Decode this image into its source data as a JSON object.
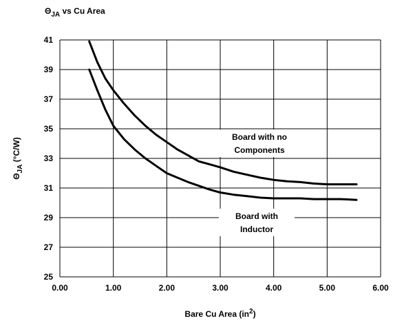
{
  "chart_data": {
    "type": "line",
    "title_symbol": "Θ",
    "title_sub": "JA",
    "title_rest": " vs Cu Area",
    "xlabel_main": "Bare Cu Area (in",
    "xlabel_sup": "2",
    "xlabel_close": ")",
    "ylabel_symbol": "Θ",
    "ylabel_sub": "JA",
    "ylabel_rest": " (°C/W)",
    "xlim": [
      0,
      6
    ],
    "ylim": [
      25,
      41
    ],
    "x_ticks": [
      0,
      1,
      2,
      3,
      4,
      5,
      6
    ],
    "x_tick_labels": [
      "0.00",
      "1.00",
      "2.00",
      "3.00",
      "4.00",
      "5.00",
      "6.00"
    ],
    "y_ticks": [
      25,
      27,
      29,
      31,
      33,
      35,
      37,
      39,
      41
    ],
    "y_tick_labels": [
      "25",
      "27",
      "29",
      "31",
      "33",
      "35",
      "37",
      "39",
      "41"
    ],
    "grid": true,
    "series": [
      {
        "name_line1": "Board with no",
        "name_line2": "Components",
        "x": [
          0.55,
          0.7,
          0.85,
          1.0,
          1.2,
          1.4,
          1.6,
          1.8,
          2.0,
          2.2,
          2.4,
          2.6,
          2.8,
          3.0,
          3.25,
          3.5,
          3.75,
          4.0,
          4.25,
          4.5,
          4.75,
          5.0,
          5.25,
          5.55
        ],
        "values": [
          40.9,
          39.5,
          38.4,
          37.6,
          36.7,
          35.9,
          35.2,
          34.6,
          34.1,
          33.6,
          33.2,
          32.8,
          32.6,
          32.4,
          32.1,
          31.9,
          31.7,
          31.55,
          31.45,
          31.4,
          31.3,
          31.25,
          31.25,
          31.25
        ]
      },
      {
        "name_line1": "Board with",
        "name_line2": "Inductor",
        "x": [
          0.55,
          0.7,
          0.85,
          1.0,
          1.2,
          1.4,
          1.6,
          1.8,
          2.0,
          2.2,
          2.4,
          2.6,
          2.8,
          3.0,
          3.25,
          3.5,
          3.75,
          4.0,
          4.25,
          4.5,
          4.75,
          5.0,
          5.25,
          5.55
        ],
        "values": [
          39.0,
          37.6,
          36.3,
          35.2,
          34.3,
          33.6,
          33.0,
          32.5,
          32.0,
          31.7,
          31.4,
          31.15,
          30.9,
          30.7,
          30.55,
          30.45,
          30.35,
          30.3,
          30.3,
          30.3,
          30.25,
          30.25,
          30.25,
          30.2
        ]
      }
    ]
  }
}
